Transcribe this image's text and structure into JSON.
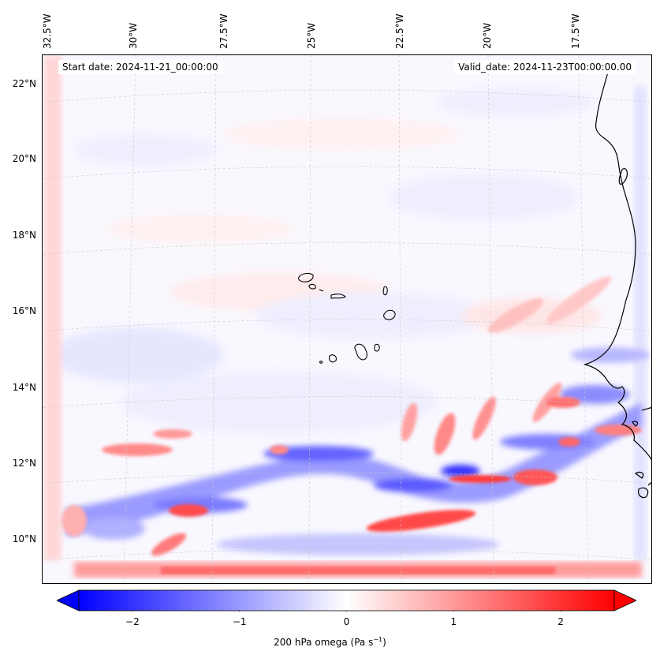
{
  "map": {
    "start_date": "Start date: 2024-11-21_00:00:00",
    "valid_date": "Valid_date: 2024-11-23T00:00:00.00",
    "longitude_labels": [
      "32.5°W",
      "30°W",
      "27.5°W",
      "25°W",
      "22.5°W",
      "20°W",
      "17.5°W"
    ],
    "latitude_labels": [
      "22°N",
      "20°N",
      "18°N",
      "16°N",
      "14°N",
      "12°N",
      "10°N"
    ],
    "extent": {
      "lon_min": -32.7,
      "lon_max": -16.5,
      "lat_min": 8.9,
      "lat_max": 22.8
    },
    "projection": "lambert-conformal",
    "gridlines": true
  },
  "colorbar": {
    "ticks": [
      "−2",
      "−1",
      "0",
      "1",
      "2"
    ],
    "tick_values": [
      -2,
      -1,
      0,
      1,
      2
    ],
    "range": [
      -2.5,
      2.5
    ],
    "extend": "both",
    "colormap": "bwr",
    "color_low": "#0000ff",
    "color_mid": "#ffffff",
    "color_high": "#ff0000",
    "label_main": "200 hPa omega (Pa s",
    "label_sup": "−1",
    "label_end": ")"
  }
}
